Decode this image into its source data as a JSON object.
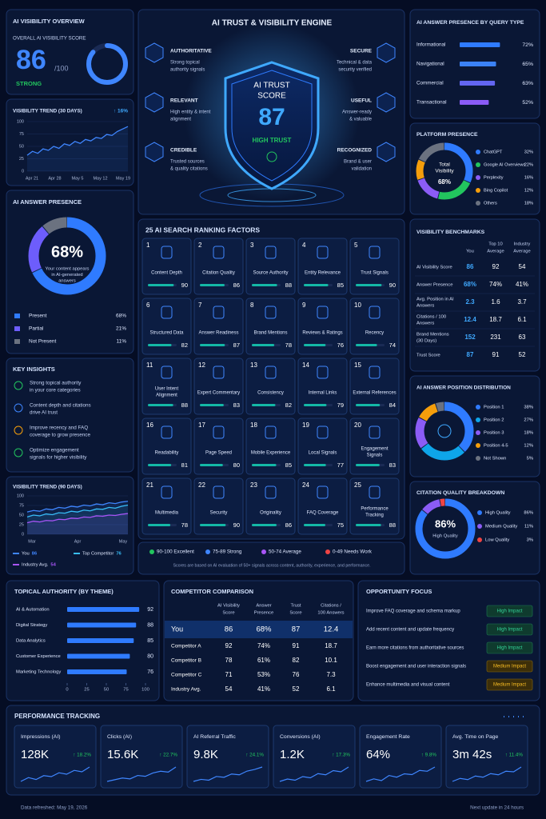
{
  "overview": {
    "title": "AI VISIBILITY OVERVIEW",
    "subtitle": "OVERALL AI VISIBILITY SCORE",
    "score": 86,
    "score_max": {
      "value": 100,
      "label": "/100"
    },
    "status": "STRONG",
    "color": "#3f86ff"
  },
  "trend30": {
    "type": "line",
    "title": "VISIBILITY TREND (30 DAYS)",
    "change": "↑ 16%",
    "values": [
      32,
      40,
      36,
      45,
      42,
      50,
      46,
      55,
      52,
      60,
      56,
      64,
      61,
      68,
      66,
      74,
      72,
      80,
      85,
      90
    ],
    "color": "#3f86ff",
    "ylim": [
      0,
      100
    ],
    "yticks": [
      0,
      25,
      50,
      75,
      100
    ],
    "x_labels": [
      "Apr 21",
      "Apr 28",
      "May 5",
      "May 12",
      "May 19"
    ]
  },
  "answer_presence": {
    "type": "donut",
    "title": "AI ANSWER PRESENCE",
    "center_value": "68%",
    "center_text": [
      "Your content appears",
      "in AI-generated",
      "answers"
    ],
    "categories": [
      "Present",
      "Partial",
      "Not Present"
    ],
    "values": [
      68,
      21,
      11
    ],
    "value_labels": [
      "68%",
      "21%",
      "11%"
    ],
    "colors": [
      "#2f7bff",
      "#6d5dfc",
      "#6b7280"
    ]
  },
  "insights": {
    "title": "KEY INSIGHTS",
    "items": [
      [
        "Strong topical authority",
        "in your core categories"
      ],
      [
        "Content depth and citations",
        "drive AI trust"
      ],
      [
        "Improve recency and FAQ",
        "coverage to grow presence"
      ],
      [
        "Optimize engagement",
        "signals for higher visibility"
      ]
    ],
    "colors": [
      "#22c55e",
      "#3f86ff",
      "#f59e0b",
      "#22c55e"
    ]
  },
  "trend90": {
    "type": "line",
    "title": "VISIBILITY TREND (90 DAYS)",
    "ylim": [
      0,
      100
    ],
    "yticks": [
      0,
      25,
      50,
      75,
      100
    ],
    "x_labels": [
      "Mar",
      "Apr",
      "May"
    ],
    "series": [
      {
        "name": "You",
        "color": "#3f86ff",
        "values": [
          58,
          62,
          60,
          66,
          64,
          70,
          68,
          73,
          71,
          76,
          74,
          79,
          77,
          82,
          80,
          84,
          86
        ]
      },
      {
        "name": "Top Competitor",
        "color": "#38bdf8",
        "values": [
          45,
          50,
          48,
          53,
          51,
          56,
          55,
          60,
          58,
          63,
          61,
          66,
          65,
          70,
          68,
          73,
          76
        ]
      },
      {
        "name": "Industry Avg.",
        "color": "#a855f7",
        "values": [
          30,
          34,
          32,
          36,
          35,
          39,
          38,
          42,
          41,
          45,
          44,
          48,
          47,
          50,
          49,
          52,
          54
        ]
      }
    ]
  },
  "engine": {
    "title": "AI TRUST & VISIBILITY ENGINE",
    "shield_label": [
      "AI TRUST",
      "SCORE"
    ],
    "score": 87,
    "status": "HIGH TRUST",
    "features": [
      {
        "title": "AUTHORITATIVE",
        "text": [
          "Strong topical",
          "authority signals"
        ]
      },
      {
        "title": "RELEVANT",
        "text": [
          "High entity & intent",
          "alignment"
        ]
      },
      {
        "title": "CREDIBLE",
        "text": [
          "Trusted sources",
          "& quality citations"
        ]
      },
      {
        "title": "SECURE",
        "text": [
          "Technical & data",
          "security verified"
        ]
      },
      {
        "title": "USEFUL",
        "text": [
          "Answer-ready",
          "& valuable"
        ]
      },
      {
        "title": "RECOGNIZED",
        "text": [
          "Brand & user",
          "validation"
        ]
      }
    ]
  },
  "factors": {
    "title": "25 AI SEARCH RANKING FACTORS",
    "bar_color": "#14b8a6",
    "items": [
      {
        "rank": 1,
        "name": [
          "Content Depth"
        ],
        "score": 90
      },
      {
        "rank": 2,
        "name": [
          "Citation Quality"
        ],
        "score": 86
      },
      {
        "rank": 3,
        "name": [
          "Source Authority"
        ],
        "score": 88
      },
      {
        "rank": 4,
        "name": [
          "Entity Relevance"
        ],
        "score": 85
      },
      {
        "rank": 5,
        "name": [
          "Trust Signals"
        ],
        "score": 90
      },
      {
        "rank": 6,
        "name": [
          "Structured Data"
        ],
        "score": 82
      },
      {
        "rank": 7,
        "name": [
          "Answer Readiness"
        ],
        "score": 87
      },
      {
        "rank": 8,
        "name": [
          "Brand Mentions"
        ],
        "score": 78
      },
      {
        "rank": 9,
        "name": [
          "Reviews & Ratings"
        ],
        "score": 76
      },
      {
        "rank": 10,
        "name": [
          "Recency"
        ],
        "score": 74
      },
      {
        "rank": 11,
        "name": [
          "User Intent",
          "Alignment"
        ],
        "score": 88
      },
      {
        "rank": 12,
        "name": [
          "Expert Commentary"
        ],
        "score": 83
      },
      {
        "rank": 13,
        "name": [
          "Consistency"
        ],
        "score": 82
      },
      {
        "rank": 14,
        "name": [
          "Internal Links"
        ],
        "score": 79
      },
      {
        "rank": 15,
        "name": [
          "External References"
        ],
        "score": 84
      },
      {
        "rank": 16,
        "name": [
          "Readability"
        ],
        "score": 81
      },
      {
        "rank": 17,
        "name": [
          "Page Speed"
        ],
        "score": 80
      },
      {
        "rank": 18,
        "name": [
          "Mobile Experience"
        ],
        "score": 85
      },
      {
        "rank": 19,
        "name": [
          "Local Signals"
        ],
        "score": 77
      },
      {
        "rank": 20,
        "name": [
          "Engagement",
          "Signals"
        ],
        "score": 83
      },
      {
        "rank": 21,
        "name": [
          "Multimedia"
        ],
        "score": 78
      },
      {
        "rank": 22,
        "name": [
          "Security"
        ],
        "score": 90
      },
      {
        "rank": 23,
        "name": [
          "Originality"
        ],
        "score": 86
      },
      {
        "rank": 24,
        "name": [
          "FAQ Coverage"
        ],
        "score": 75
      },
      {
        "rank": 25,
        "name": [
          "Performance",
          "Tracking"
        ],
        "score": 88
      }
    ],
    "legend": [
      {
        "label": "90-100 Excellent",
        "color": "#22c55e"
      },
      {
        "label": "75-89 Strong",
        "color": "#3f86ff"
      },
      {
        "label": "50-74 Average",
        "color": "#a855f7"
      },
      {
        "label": "0-49 Needs Work",
        "color": "#ef4444"
      }
    ],
    "note": "Scores are based on AI evaluation of 50+ signals across content, authority, experience, and performance."
  },
  "query_presence": {
    "type": "bar",
    "title": "AI ANSWER PRESENCE BY QUERY TYPE",
    "categories": [
      "Informational",
      "Navigational",
      "Commercial",
      "Transactional"
    ],
    "values": [
      72,
      65,
      63,
      52
    ],
    "value_labels": [
      "72%",
      "65%",
      "63%",
      "52%"
    ],
    "colors": [
      "#2f7bff",
      "#3b82f6",
      "#6366f1",
      "#8b5cf6"
    ]
  },
  "platform": {
    "type": "donut",
    "title": "PLATFORM PRESENCE",
    "center_text": [
      "Total",
      "Visibility"
    ],
    "center_value": "68%",
    "categories": [
      "ChatGPT",
      "Google AI Overviews",
      "Perplexity",
      "Bing Copilot",
      "Others"
    ],
    "values": [
      32,
      22,
      16,
      12,
      18
    ],
    "value_labels": [
      "32%",
      "22%",
      "16%",
      "12%",
      "18%"
    ],
    "colors": [
      "#2f7bff",
      "#22c55e",
      "#8b5cf6",
      "#f59e0b",
      "#6b7280"
    ]
  },
  "benchmarks": {
    "title": "VISIBILITY BENCHMARKS",
    "you_color": "#3fa9ff",
    "columns": [
      [
        "You"
      ],
      [
        "Top 10",
        "Average"
      ],
      [
        "Industry",
        "Average"
      ]
    ],
    "rows": [
      {
        "label": [
          "AI Visibility Score"
        ],
        "cells": [
          "86",
          "92",
          "54"
        ]
      },
      {
        "label": [
          "Answer Presence"
        ],
        "cells": [
          "68%",
          "74%",
          "41%"
        ]
      },
      {
        "label": [
          "Avg. Position in AI",
          "Answers"
        ],
        "cells": [
          "2.3",
          "1.6",
          "3.7"
        ]
      },
      {
        "label": [
          "Citations / 100",
          "Answers"
        ],
        "cells": [
          "12.4",
          "18.7",
          "6.1"
        ]
      },
      {
        "label": [
          "Brand Mentions",
          "(30 Days)"
        ],
        "cells": [
          "152",
          "231",
          "63"
        ]
      },
      {
        "label": [
          "Trust Score"
        ],
        "cells": [
          "87",
          "91",
          "52"
        ]
      }
    ]
  },
  "position": {
    "type": "donut",
    "title": "AI ANSWER POSITION DISTRIBUTION",
    "categories": [
      "Position 1",
      "Position 2",
      "Position 3",
      "Position 4-5",
      "Not Shown"
    ],
    "values": [
      38,
      27,
      18,
      12,
      5
    ],
    "value_labels": [
      "38%",
      "27%",
      "18%",
      "12%",
      "5%"
    ],
    "colors": [
      "#2f7bff",
      "#0ea5e9",
      "#8b5cf6",
      "#f59e0b",
      "#6b7280"
    ]
  },
  "citation": {
    "type": "donut",
    "title": "CITATION QUALITY BREAKDOWN",
    "center_value": "86%",
    "center_text": [
      "High Quality"
    ],
    "categories": [
      "High Quality",
      "Medium Quality",
      "Low Quality"
    ],
    "values": [
      86,
      11,
      3
    ],
    "value_labels": [
      "86%",
      "11%",
      "3%"
    ],
    "colors": [
      "#2f7bff",
      "#8b5cf6",
      "#ef4444"
    ]
  },
  "topical": {
    "type": "bar",
    "title": "TOPICAL AUTHORITY (BY THEME)",
    "categories": [
      "AI & Automation",
      "Digital Strategy",
      "Data Analytics",
      "Customer Experience",
      "Marketing Technology"
    ],
    "values": [
      92,
      88,
      85,
      80,
      76
    ],
    "color": "#2f7bff",
    "xlim": [
      0,
      100
    ],
    "xticks": [
      0,
      25,
      50,
      75,
      100
    ]
  },
  "competitors": {
    "title": "COMPETITOR COMPARISON",
    "columns": [
      [
        "AI Visibility",
        "Score"
      ],
      [
        "Answer",
        "Presence"
      ],
      [
        "Trust",
        "Score"
      ],
      [
        "Citations /",
        "100 Answers"
      ]
    ],
    "rows": [
      {
        "label": "You",
        "cells": [
          "86",
          "68%",
          "87",
          "12.4"
        ]
      },
      {
        "label": "Competitor A",
        "cells": [
          "92",
          "74%",
          "91",
          "18.7"
        ]
      },
      {
        "label": "Competitor B",
        "cells": [
          "78",
          "61%",
          "82",
          "10.1"
        ]
      },
      {
        "label": "Competitor C",
        "cells": [
          "71",
          "53%",
          "76",
          "7.3"
        ]
      },
      {
        "label": "Industry Avg.",
        "cells": [
          "54",
          "41%",
          "52",
          "6.1"
        ]
      }
    ]
  },
  "opportunities": {
    "title": "OPPORTUNITY FOCUS",
    "items": [
      {
        "text": "Improve FAQ coverage and schema markup",
        "impact": "High Impact"
      },
      {
        "text": "Add recent content and update frequency",
        "impact": "High Impact"
      },
      {
        "text": "Earn more citations from authoritative sources",
        "impact": "High Impact"
      },
      {
        "text": "Boost engagement and user interaction signals",
        "impact": "Medium Impact"
      },
      {
        "text": "Enhance multimedia and visual content",
        "impact": "Medium Impact"
      }
    ]
  },
  "performance": {
    "title": "PERFORMANCE TRACKING",
    "kpis": [
      {
        "label": "Impressions (AI)",
        "value": "128K",
        "change": "↑ 18.2%",
        "trend": [
          40,
          48,
          44,
          52,
          50,
          58,
          55,
          63,
          60,
          70
        ]
      },
      {
        "label": "Clicks (AI)",
        "value": "15.6K",
        "change": "↑ 22.7%",
        "trend": [
          38,
          42,
          46,
          44,
          52,
          50,
          58,
          62,
          60,
          72
        ]
      },
      {
        "label": "AI Referral Traffic",
        "value": "9.8K",
        "change": "↑ 24.1%",
        "trend": [
          35,
          40,
          38,
          47,
          45,
          53,
          51,
          60,
          64,
          70
        ]
      },
      {
        "label": "Conversions (AI)",
        "value": "1.2K",
        "change": "↑ 17.3%",
        "trend": [
          42,
          46,
          44,
          50,
          48,
          55,
          53,
          60,
          58,
          66
        ]
      },
      {
        "label": "Engagement Rate",
        "value": "64%",
        "change": "↑ 9.8%",
        "trend": [
          45,
          48,
          46,
          52,
          50,
          54,
          53,
          58,
          57,
          62
        ]
      },
      {
        "label": "Avg. Time on Page",
        "value": "3m 42s",
        "change": "↑ 11.4%",
        "trend": [
          40,
          45,
          43,
          49,
          47,
          53,
          51,
          57,
          56,
          64
        ]
      }
    ]
  },
  "footer": {
    "refreshed": "Data refreshed: May 19, 2026",
    "next": "Next update in 24 hours"
  }
}
